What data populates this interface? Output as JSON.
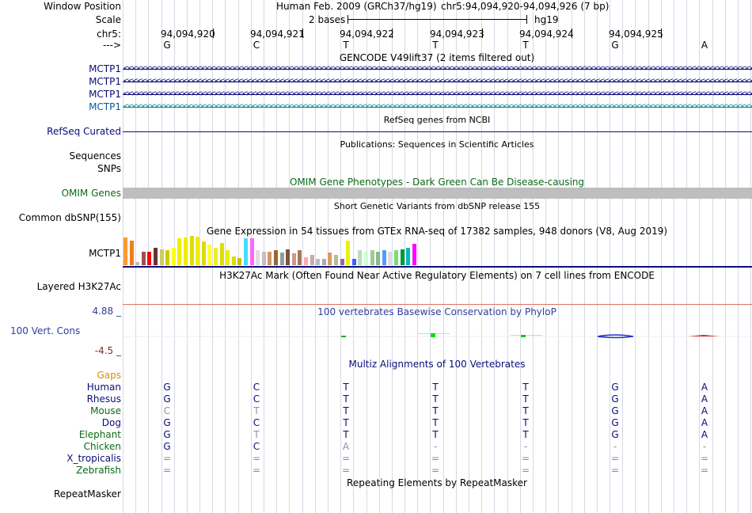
{
  "header": {
    "window_position_label": "Window Position",
    "scale_label": "Scale",
    "chr_label": "chr5:",
    "strand_label": "--->",
    "assembly": "Human Feb. 2009 (GRCh37/hg19)",
    "position": "chr5:94,094,920-94,094,926 (7 bp)",
    "scale_text": "2 bases",
    "db": "hg19",
    "coordinates": [
      "94,094,920",
      "94,094,921",
      "94,094,922",
      "94,094,923",
      "94,094,924",
      "94,094,925"
    ],
    "bases": [
      "G",
      "C",
      "T",
      "T",
      "T",
      "G",
      "A"
    ]
  },
  "tracks": {
    "gencode": {
      "title": "GENCODE V49lift37 (2 items filtered out)",
      "items": [
        "MCTP1",
        "MCTP1",
        "MCTP1",
        "MCTP1"
      ],
      "colors": [
        "#0c0c78",
        "#0c0c78",
        "#0c0c78",
        "#0a5aa0"
      ],
      "arrow_colors": [
        "#0c0c78",
        "#0c0c78",
        "#0c0c78",
        "#0a8a8a"
      ]
    },
    "refseq": {
      "label": "RefSeq Curated",
      "title": "RefSeq genes from NCBI"
    },
    "publications": {
      "label": "Sequences",
      "title": "Publications: Sequences in Scientific Articles"
    },
    "snps": {
      "label": "SNPs"
    },
    "omim": {
      "label": "OMIM Genes",
      "title": "OMIM Gene Phenotypes - Dark Green Can Be Disease-causing"
    },
    "dbsnp": {
      "label": "Common dbSNP(155)",
      "title": "Short Genetic Variants from dbSNP release 155"
    },
    "gtex": {
      "label": "MCTP1",
      "title": "Gene Expression in 54 tissues from GTEx RNA-seq of 17382 samples, 948 donors (V8, Aug 2019)",
      "bar_colors": [
        "#ff9933",
        "#ee7f1a",
        "#bbbbbb",
        "#a05050",
        "#ff0000",
        "#663333",
        "#cccc66",
        "#cccc00",
        "#ffff00",
        "#eeee00",
        "#eeee00",
        "#dddd00",
        "#eeee00",
        "#dddd00",
        "#ffff33",
        "#eeee22",
        "#dddd00",
        "#eeee00",
        "#dddd00",
        "#c0c000",
        "#44ddff",
        "#ff66ff",
        "#dddddd",
        "#ccbbbb",
        "#cc9966",
        "#996633",
        "#999999",
        "#775544",
        "#cc9988",
        "#aa7755",
        "#ffaaaa",
        "#ccaaaa",
        "#bbbbbb",
        "#aaaaaa",
        "#dd9966",
        "#bbbb99",
        "#996699",
        "#eeee11",
        "#3366ff",
        "#bbddbb",
        "#ccffcc",
        "#99cc99",
        "#88bb88",
        "#5599ff",
        "#dddddd",
        "#77dd77",
        "#009933",
        "#00bbbb",
        "#ff00ff"
      ],
      "bar_values": [
        0.95,
        0.85,
        0.12,
        0.45,
        0.45,
        0.6,
        0.55,
        0.5,
        0.6,
        0.92,
        0.95,
        1.0,
        0.97,
        0.8,
        0.7,
        0.6,
        0.75,
        0.5,
        0.3,
        0.25,
        0.92,
        0.92,
        0.5,
        0.45,
        0.45,
        0.5,
        0.42,
        0.55,
        0.4,
        0.5,
        0.28,
        0.35,
        0.22,
        0.22,
        0.42,
        0.35,
        0.22,
        0.85,
        0.22,
        0.5,
        0.45,
        0.5,
        0.45,
        0.5,
        0.45,
        0.5,
        0.55,
        0.6,
        0.72
      ]
    },
    "h3k27ac": {
      "label": "Layered H3K27Ac",
      "title": "H3K27Ac Mark (Often Found Near Active Regulatory Elements) on 7 cell lines from ENCODE"
    },
    "phylop": {
      "label": "100 Vert. Cons",
      "title": "100 vertebrates Basewise Conservation by PhyloP",
      "max": "4.88 _",
      "min": "-4.5 _"
    },
    "multiz": {
      "title": "Multiz Alignments of 100 Vertebrates",
      "gaps_label": "Gaps",
      "species": [
        {
          "name": "Human",
          "bases": [
            "G",
            "C",
            "T",
            "T",
            "T",
            "G",
            "A"
          ]
        },
        {
          "name": "Rhesus",
          "bases": [
            "G",
            "C",
            "T",
            "T",
            "T",
            "G",
            "A"
          ]
        },
        {
          "name": "Mouse",
          "bases": [
            "C",
            "T",
            "T",
            "T",
            "T",
            "G",
            "A"
          ]
        },
        {
          "name": "Dog",
          "bases": [
            "G",
            "C",
            "T",
            "T",
            "T",
            "G",
            "A"
          ]
        },
        {
          "name": "Elephant",
          "bases": [
            "G",
            "T",
            "T",
            "T",
            "T",
            "G",
            "A"
          ]
        },
        {
          "name": "Chicken",
          "bases": [
            "G",
            "C",
            "A",
            "-",
            "-",
            "-",
            "-"
          ]
        },
        {
          "name": "X_tropicalis",
          "bases": [
            "=",
            "=",
            "=",
            "=",
            "=",
            "=",
            "="
          ]
        },
        {
          "name": "Zebrafish",
          "bases": [
            "=",
            "=",
            "=",
            "=",
            "=",
            "=",
            "="
          ]
        }
      ],
      "species_colors": [
        "#0c0c78",
        "#0c0c78",
        "#0b6a16",
        "#0c0c78",
        "#0b6a16",
        "#0b6a16",
        "#0c0c78",
        "#0b6a16"
      ]
    },
    "repeatmasker": {
      "label": "RepeatMasker",
      "title": "Repeating Elements by RepeatMasker"
    }
  }
}
